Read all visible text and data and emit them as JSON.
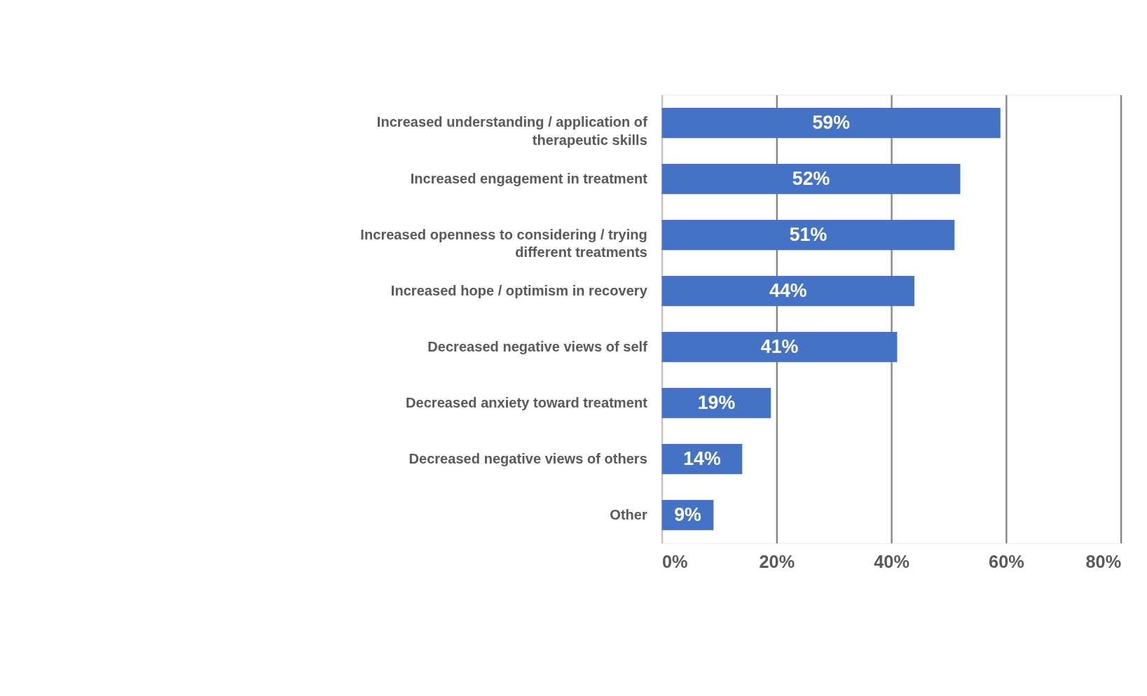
{
  "chart_data": {
    "type": "bar",
    "orientation": "horizontal",
    "categories": [
      "Increased understanding / application of therapeutic skills",
      "Increased engagement in treatment",
      "Increased openness to considering / trying different treatments",
      "Increased hope / optimism in recovery",
      "Decreased negative views of self",
      "Decreased anxiety toward treatment",
      "Decreased negative views of others",
      "Other"
    ],
    "values": [
      59,
      52,
      51,
      44,
      41,
      19,
      14,
      9
    ],
    "value_labels": [
      "59%",
      "52%",
      "51%",
      "44%",
      "41%",
      "19%",
      "14%",
      "9%"
    ],
    "color": "#4472c4",
    "xlim": [
      0,
      80
    ],
    "xticks": [
      {
        "value": 0,
        "label": "0%"
      },
      {
        "value": 20,
        "label": "20%"
      },
      {
        "value": 40,
        "label": "40%"
      },
      {
        "value": 60,
        "label": "60%"
      },
      {
        "value": 80,
        "label": "80%"
      }
    ],
    "grid": "x"
  }
}
